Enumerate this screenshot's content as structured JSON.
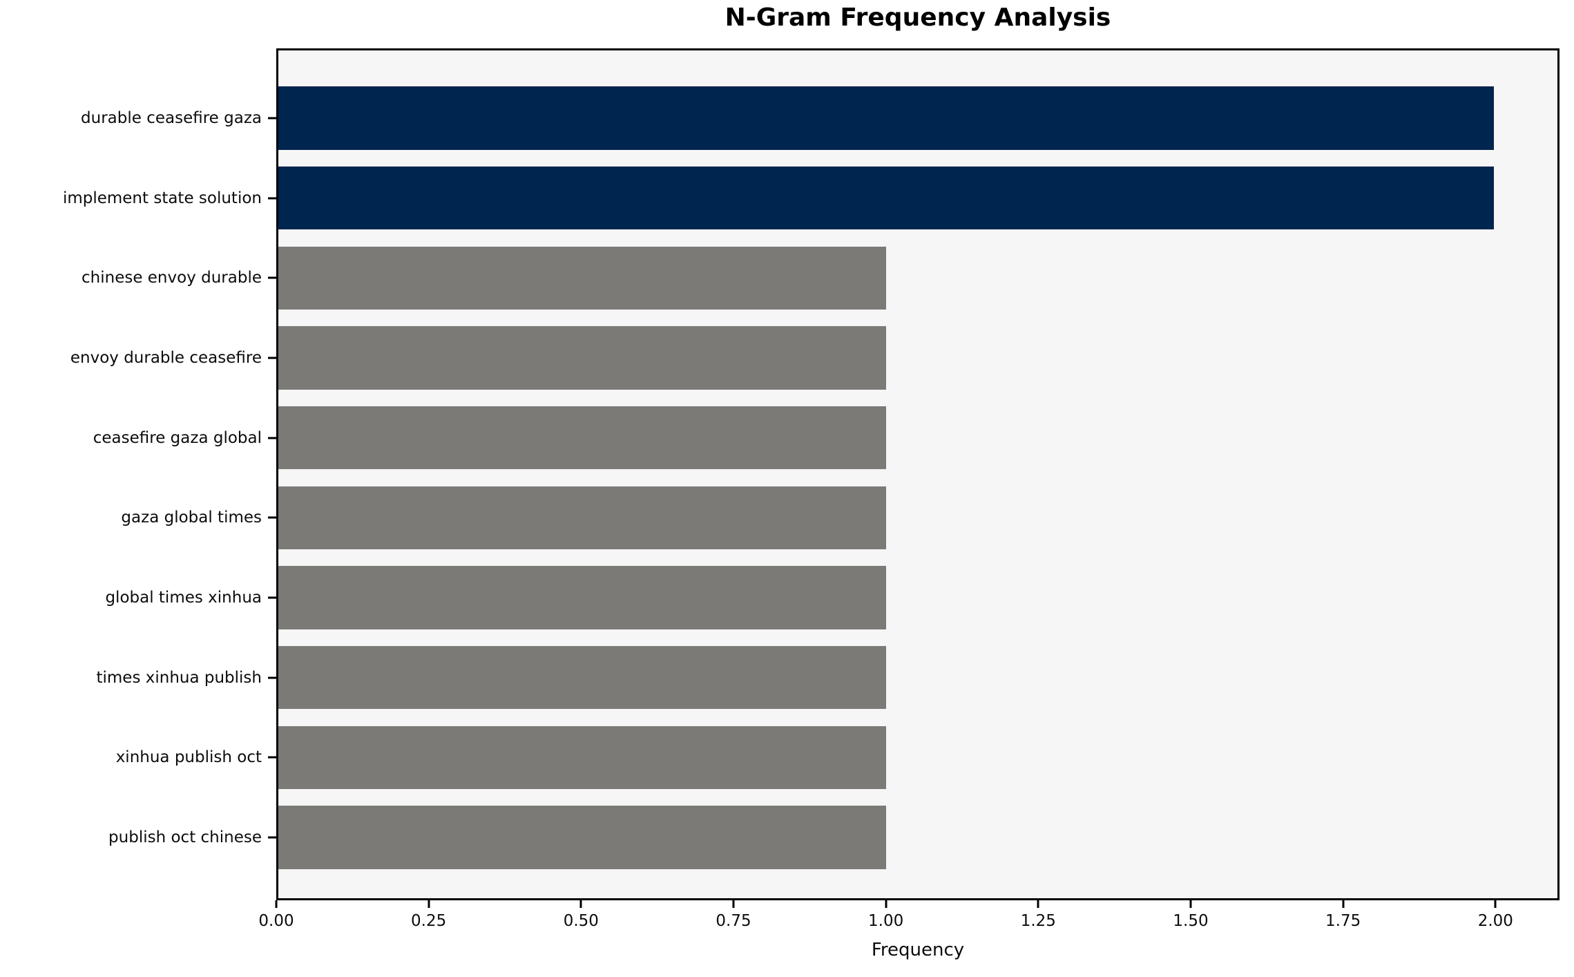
{
  "chart_data": {
    "type": "bar",
    "orientation": "horizontal",
    "title": "N-Gram Frequency Analysis",
    "xlabel": "Frequency",
    "ylabel": "",
    "categories": [
      "durable ceasefire gaza",
      "implement state solution",
      "chinese envoy durable",
      "envoy durable ceasefire",
      "ceasefire gaza global",
      "gaza global times",
      "global times xinhua",
      "times xinhua publish",
      "xinhua publish oct",
      "publish oct chinese"
    ],
    "values": [
      2,
      2,
      1,
      1,
      1,
      1,
      1,
      1,
      1,
      1
    ],
    "bar_colors": [
      "#00254e",
      "#00254e",
      "#7b7a77",
      "#7b7a77",
      "#7b7a77",
      "#7b7a77",
      "#7b7a77",
      "#7b7a77",
      "#7b7a77",
      "#7b7a77"
    ],
    "xlim": [
      0,
      2.105
    ],
    "x_ticks": [
      0,
      0.25,
      0.5,
      0.75,
      1,
      1.25,
      1.5,
      1.75,
      2
    ],
    "x_tick_labels": [
      "0.00",
      "0.25",
      "0.50",
      "0.75",
      "1.00",
      "1.25",
      "1.50",
      "1.75",
      "2.00"
    ],
    "grid": false,
    "legend": null,
    "colors": {
      "highlight_bar": "#00254e",
      "default_bar": "#7b7a77",
      "plot_background": "#f7f6f6",
      "figure_background": "#ffffff",
      "axis_frame": "#000000",
      "text": "#0c0c0c"
    }
  }
}
